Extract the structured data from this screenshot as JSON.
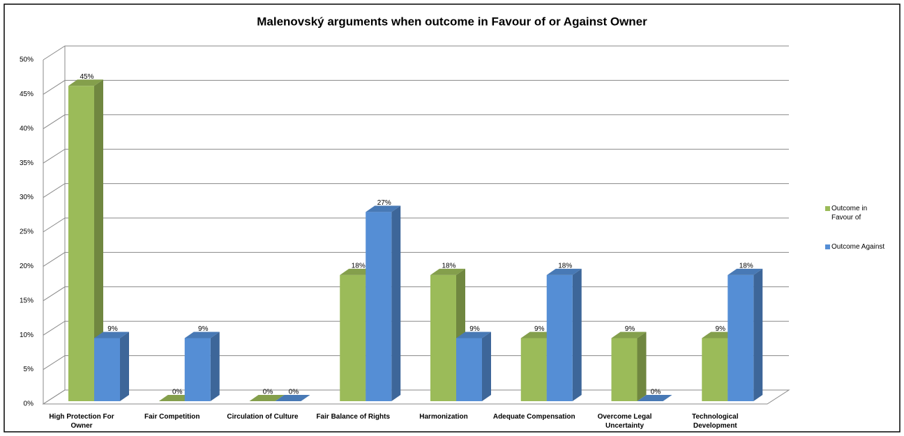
{
  "chart_data": {
    "type": "bar3d",
    "title": "Malenovský  arguments when outcome in Favour of or Against Owner",
    "categories": [
      "High Protection For Owner",
      "Fair Competition",
      "Circulation of Culture",
      "Fair Balance of Rights",
      "Harmonization",
      "Adequate Compensation",
      "Overcome Legal Uncertainty",
      "Technological Development"
    ],
    "series": [
      {
        "name": "Outcome in Favour of",
        "color": "#9bbb59",
        "values": [
          45,
          0,
          0,
          18,
          18,
          9,
          9,
          9
        ],
        "value_labels": [
          "45%",
          "0%",
          "0%",
          "18%",
          "18%",
          "9%",
          "9%",
          "9%"
        ]
      },
      {
        "name": "Outcome Against",
        "color": "#558ed5",
        "values": [
          9,
          9,
          0,
          27,
          9,
          18,
          0,
          18
        ],
        "value_labels": [
          "9%",
          "9%",
          "0%",
          "27%",
          "9%",
          "18%",
          "0%",
          "18%"
        ]
      }
    ],
    "ylim": [
      0,
      50
    ],
    "yticks": [
      {
        "value": 0,
        "label": "0%"
      },
      {
        "value": 5,
        "label": "5%"
      },
      {
        "value": 10,
        "label": "10%"
      },
      {
        "value": 15,
        "label": "15%"
      },
      {
        "value": 20,
        "label": "20%"
      },
      {
        "value": 25,
        "label": "25%"
      },
      {
        "value": 30,
        "label": "30%"
      },
      {
        "value": 35,
        "label": "35%"
      },
      {
        "value": 40,
        "label": "40%"
      },
      {
        "value": 45,
        "label": "45%"
      },
      {
        "value": 50,
        "label": "50%"
      }
    ],
    "grid": true,
    "legend": "right"
  }
}
